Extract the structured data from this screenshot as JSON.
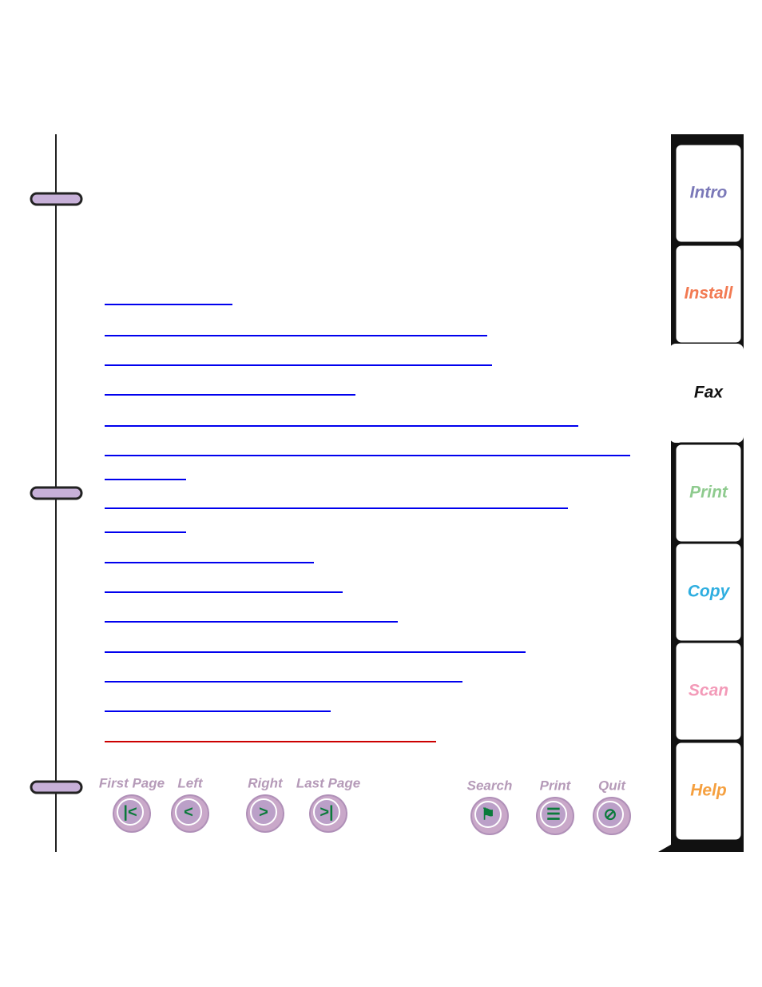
{
  "tabs": [
    "Intro",
    "Install",
    "Fax",
    "Print",
    "Copy",
    "Scan",
    "Help"
  ],
  "navigation": [
    "First Page",
    "Left",
    "Right",
    "Last Page"
  ],
  "tools": [
    "Search",
    "Print",
    "Quit"
  ]
}
